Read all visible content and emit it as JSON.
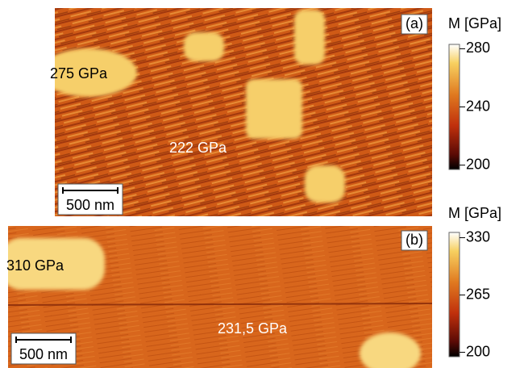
{
  "panels": [
    {
      "label": "(a)",
      "annotations": [
        "275 GPa",
        "222 GPa"
      ],
      "scale_bar": "500 nm",
      "colorbar": {
        "title": "M [GPa]",
        "lim": [
          197,
          283
        ],
        "ticks": [
          200,
          240,
          280
        ]
      }
    },
    {
      "label": "(b)",
      "annotations": [
        "310 GPa",
        "231,5 GPa"
      ],
      "scale_bar": "500 nm",
      "colorbar": {
        "title": "M [GPa]",
        "lim": [
          195,
          336
        ],
        "ticks": [
          200,
          265,
          330
        ]
      }
    }
  ]
}
